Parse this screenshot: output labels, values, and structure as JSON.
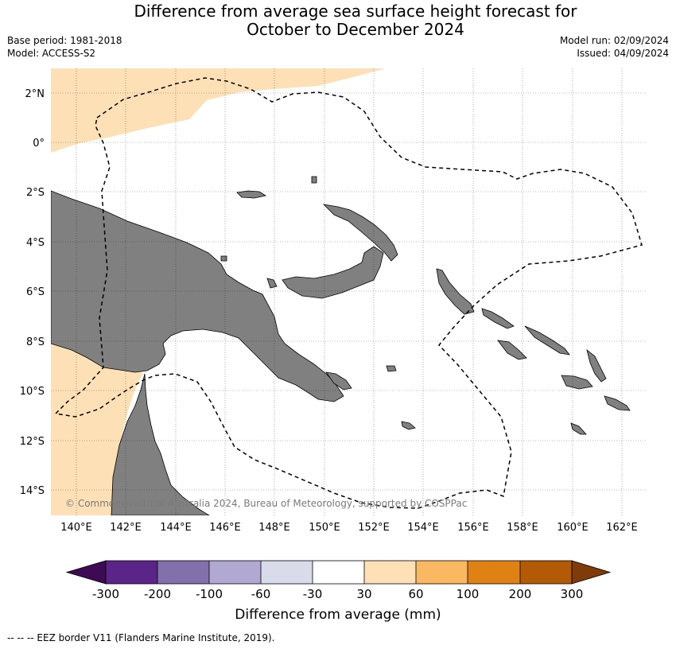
{
  "title": {
    "line1": "Difference from average sea surface height forecast for",
    "line2": "October to December 2024"
  },
  "meta": {
    "base_period": "Base period: 1981-2018",
    "model": "Model: ACCESS-S2",
    "model_run": "Model run: 02/09/2024",
    "issued": "Issued: 04/09/2024"
  },
  "map": {
    "lat_labels": [
      "2°N",
      "0°",
      "2°S",
      "4°S",
      "6°S",
      "8°S",
      "10°S",
      "12°S",
      "14°S"
    ],
    "lon_labels": [
      "140°E",
      "142°E",
      "144°E",
      "146°E",
      "148°E",
      "150°E",
      "152°E",
      "154°E",
      "156°E",
      "158°E",
      "160°E",
      "162°E"
    ],
    "copyright": "© Commonwealth of Australia 2024, Bureau of Meteorology, supported by COSPPac",
    "colors": {
      "land": "#808080",
      "positive_30_60": "#fde0b6",
      "ocean": "#ffffff"
    }
  },
  "colorbar": {
    "title": "Difference from average (mm)",
    "ticks": [
      "-300",
      "-200",
      "-100",
      "-60",
      "-30",
      "30",
      "60",
      "100",
      "200",
      "300"
    ],
    "colors": [
      "#3d0a53",
      "#5a2489",
      "#8270ac",
      "#b1a9d2",
      "#d9dbea",
      "#ffffff",
      "#fde0b6",
      "#fbb862",
      "#e08213",
      "#b35a06",
      "#7f3b08"
    ]
  },
  "footnote": "--  --  -- EEZ border V11 (Flanders Marine Institute, 2019)."
}
